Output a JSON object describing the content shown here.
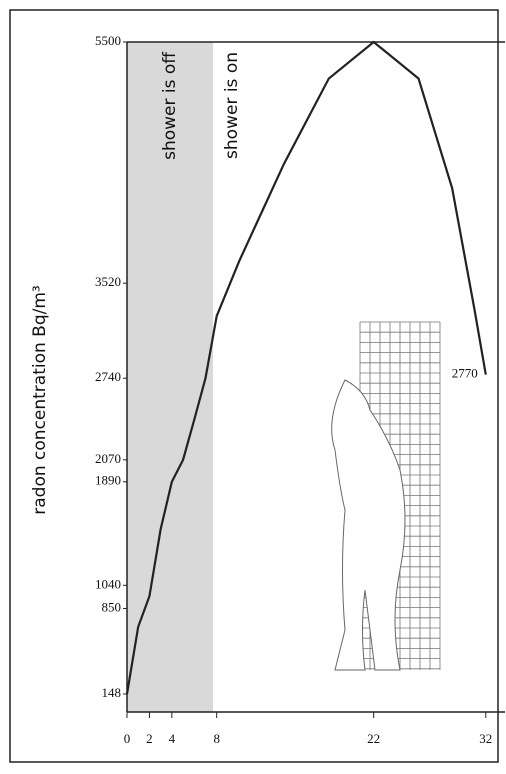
{
  "chart_data": {
    "type": "line",
    "y_label": "radon concentration Bq/m³",
    "annotations": [
      "shower is off",
      "shower is on"
    ],
    "x": [
      0,
      1,
      2,
      3,
      4,
      5,
      6,
      7,
      8,
      10,
      14,
      18,
      22,
      26,
      29,
      31,
      32
    ],
    "values": [
      148,
      700,
      950,
      1500,
      1890,
      2070,
      2400,
      2740,
      3250,
      3700,
      4500,
      5200,
      5500,
      5200,
      4300,
      3300,
      2770
    ],
    "color": "#222222",
    "xlim": [
      0,
      33
    ],
    "xticks": [
      0,
      2,
      4,
      8,
      22,
      32
    ],
    "ylim": [
      0,
      5500
    ],
    "yticks": [
      148,
      850,
      1040,
      1890,
      2070,
      2740,
      3520,
      5500
    ]
  }
}
